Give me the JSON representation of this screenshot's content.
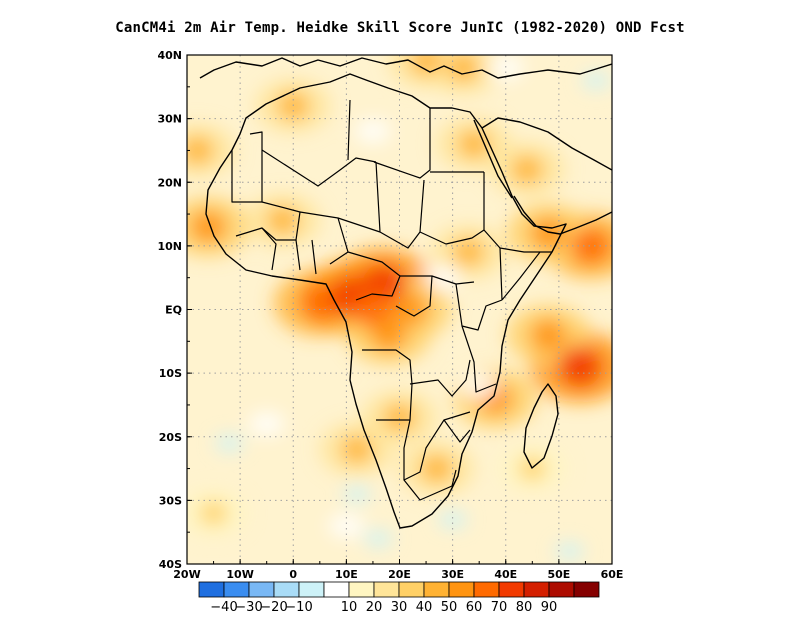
{
  "title": "CanCM4i  2m Air Temp. Heidke Skill Score JunIC (1982-2020) OND Fcst",
  "chart_data": {
    "type": "heatmap",
    "title": "CanCM4i  2m Air Temp. Heidke Skill Score JunIC (1982-2020) OND Fcst",
    "region": "Africa",
    "xlim": [
      -20,
      60
    ],
    "ylim": [
      -40,
      40
    ],
    "x_ticks": [
      {
        "value": -20,
        "label": "20W"
      },
      {
        "value": -10,
        "label": "10W"
      },
      {
        "value": 0,
        "label": "0"
      },
      {
        "value": 10,
        "label": "10E"
      },
      {
        "value": 20,
        "label": "20E"
      },
      {
        "value": 30,
        "label": "30E"
      },
      {
        "value": 40,
        "label": "40E"
      },
      {
        "value": 50,
        "label": "50E"
      },
      {
        "value": 60,
        "label": "60E"
      }
    ],
    "y_ticks": [
      {
        "value": 40,
        "label": "40N"
      },
      {
        "value": 30,
        "label": "30N"
      },
      {
        "value": 20,
        "label": "20N"
      },
      {
        "value": 10,
        "label": "10N"
      },
      {
        "value": 0,
        "label": "EQ"
      },
      {
        "value": -10,
        "label": "10S"
      },
      {
        "value": -20,
        "label": "20S"
      },
      {
        "value": -30,
        "label": "30S"
      },
      {
        "value": -40,
        "label": "40S"
      }
    ],
    "grid": true,
    "colorbar": {
      "colors": [
        "#1f6fe0",
        "#3a8df0",
        "#79b8f5",
        "#a9dcf7",
        "#cdf2f8",
        "#ffffff",
        "#fff6c2",
        "#ffe599",
        "#ffd066",
        "#ffb233",
        "#ff9411",
        "#ff6a00",
        "#f23a00",
        "#d41f00",
        "#ad0c00",
        "#850000"
      ],
      "labels": [
        "-40",
        "-30",
        "-20",
        "-10",
        "10",
        "20",
        "30",
        "40",
        "50",
        "60",
        "70",
        "80",
        "90"
      ]
    },
    "hotspots": [
      {
        "lon": 5,
        "lat": 1,
        "level": 5
      },
      {
        "lon": 11,
        "lat": 2,
        "level": 6
      },
      {
        "lon": 17,
        "lat": 4,
        "level": 6
      },
      {
        "lon": 15,
        "lat": 0,
        "level": 5
      },
      {
        "lon": 22,
        "lat": 0,
        "level": 4
      },
      {
        "lon": 18,
        "lat": -4,
        "level": 4
      },
      {
        "lon": 54,
        "lat": -9,
        "level": 6
      },
      {
        "lon": 56,
        "lat": 10,
        "level": 5
      },
      {
        "lon": 48,
        "lat": -4,
        "level": 4
      },
      {
        "lon": 48,
        "lat": 12,
        "level": 4
      },
      {
        "lon": 38,
        "lat": -14,
        "level": 4
      },
      {
        "lon": 33,
        "lat": 9,
        "level": 3
      },
      {
        "lon": -18,
        "lat": 25,
        "level": 3
      },
      {
        "lon": -16,
        "lat": 13,
        "level": 4
      },
      {
        "lon": -2,
        "lat": 14,
        "level": 3
      },
      {
        "lon": 34,
        "lat": 26,
        "level": 3
      },
      {
        "lon": 44,
        "lat": 22,
        "level": 3
      },
      {
        "lon": 0,
        "lat": 32,
        "level": 3
      },
      {
        "lon": 25,
        "lat": 39,
        "level": 3
      },
      {
        "lon": 32,
        "lat": 38,
        "level": 3
      },
      {
        "lon": -15,
        "lat": -32,
        "level": 2
      },
      {
        "lon": 20,
        "lat": -17,
        "level": 3
      },
      {
        "lon": 12,
        "lat": -22,
        "level": 3
      },
      {
        "lon": 27,
        "lat": -25,
        "level": 3
      },
      {
        "lon": 45,
        "lat": -25,
        "level": 2
      }
    ],
    "negative_spots": [
      {
        "lon": 57,
        "lat": 36
      },
      {
        "lon": 16,
        "lat": -36
      },
      {
        "lon": 12,
        "lat": -29
      },
      {
        "lon": -12,
        "lat": -21
      },
      {
        "lon": 30,
        "lat": -33
      },
      {
        "lon": 52,
        "lat": -38
      }
    ]
  }
}
